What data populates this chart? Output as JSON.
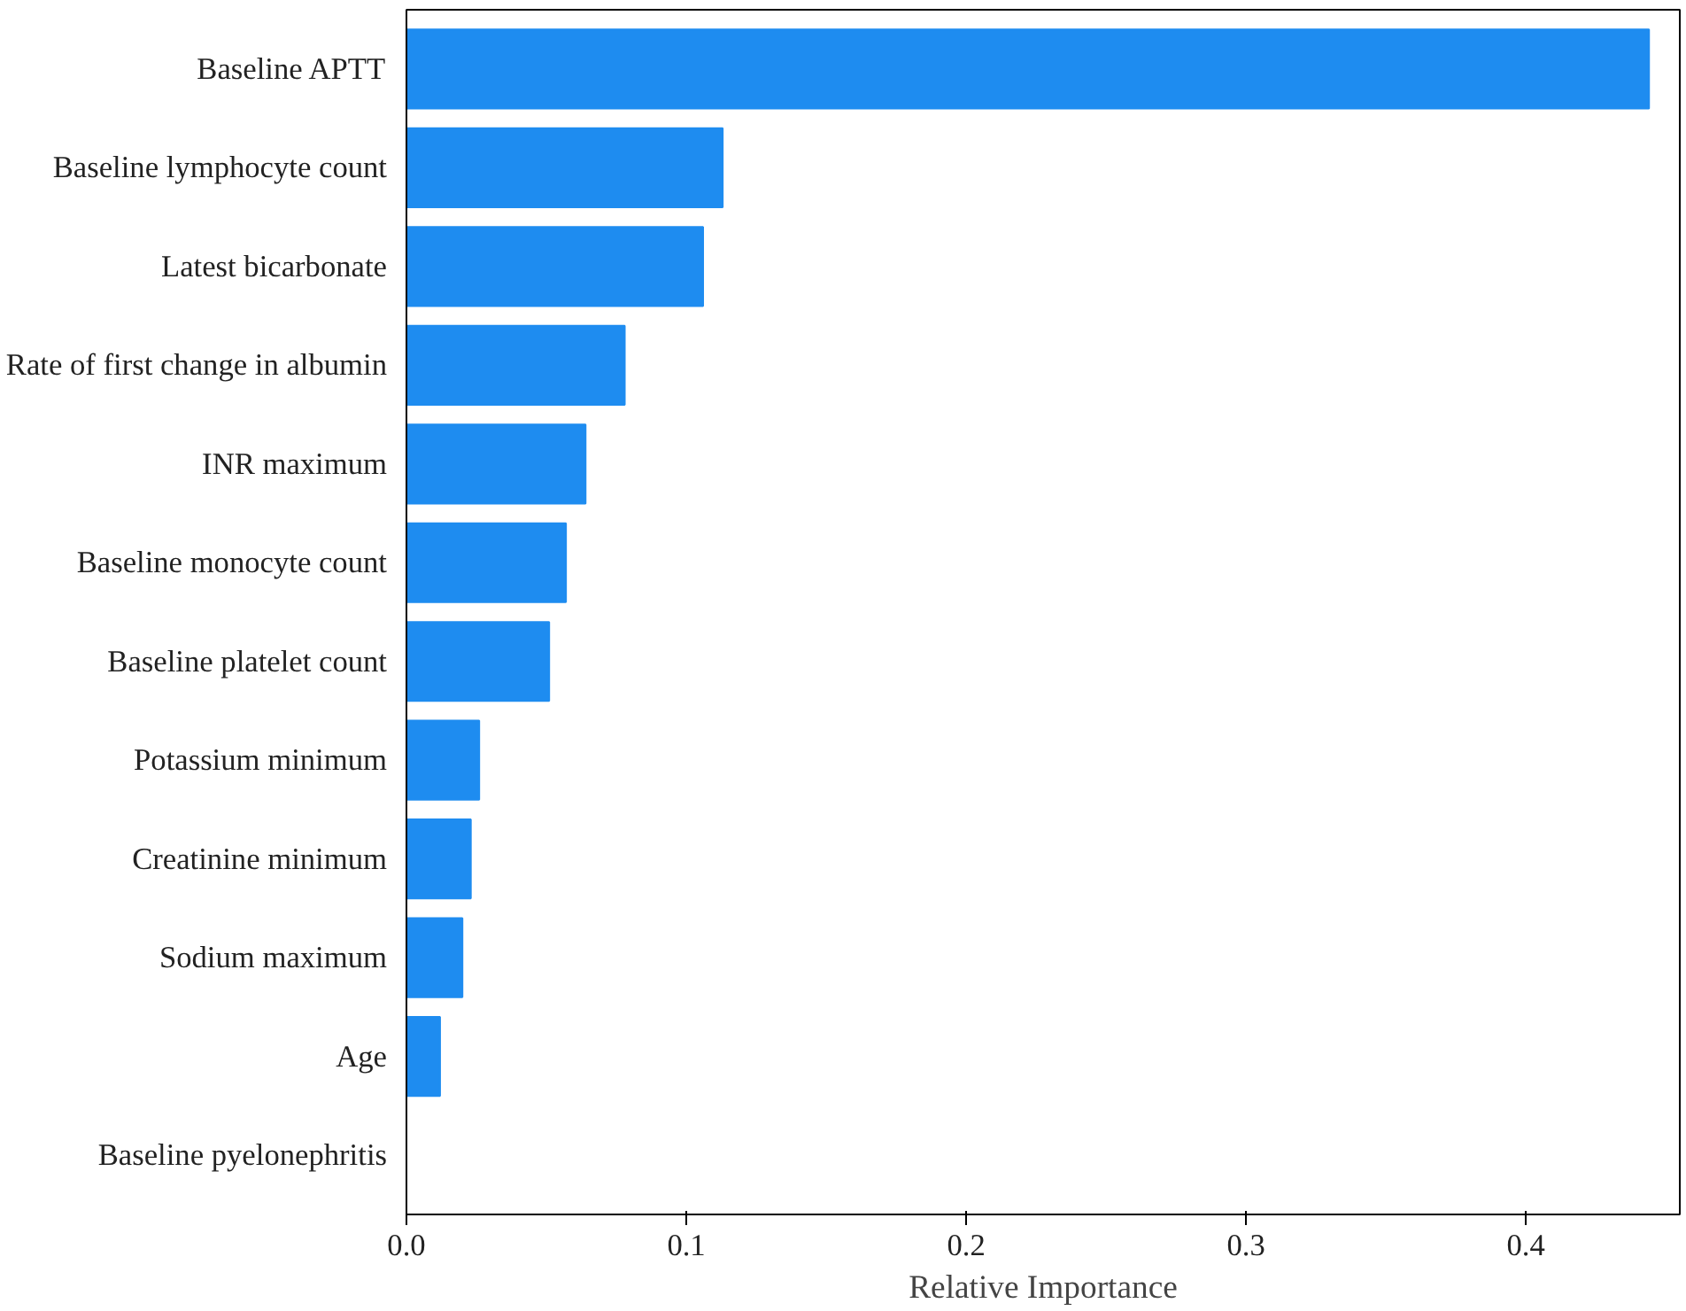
{
  "chart_data": {
    "type": "bar",
    "orientation": "horizontal",
    "xlabel": "Relative Importance",
    "categories": [
      "Baseline APTT",
      "Baseline lymphocyte count",
      "Latest bicarbonate",
      "Rate of first change in albumin",
      "INR maximum",
      "Baseline monocyte count",
      "Baseline platelet count",
      "Potassium minimum",
      "Creatinine minimum",
      "Sodium maximum",
      "Age",
      "Baseline pyelonephritis"
    ],
    "values": [
      0.444,
      0.113,
      0.106,
      0.078,
      0.064,
      0.057,
      0.051,
      0.026,
      0.023,
      0.02,
      0.012,
      0.0
    ],
    "color": "#1e8cf0",
    "xlim": [
      0,
      0.455
    ],
    "xticks": [
      {
        "value": 0,
        "label": "0.0"
      },
      0.1,
      0.2,
      0.3,
      0.4
    ],
    "grid": false
  }
}
